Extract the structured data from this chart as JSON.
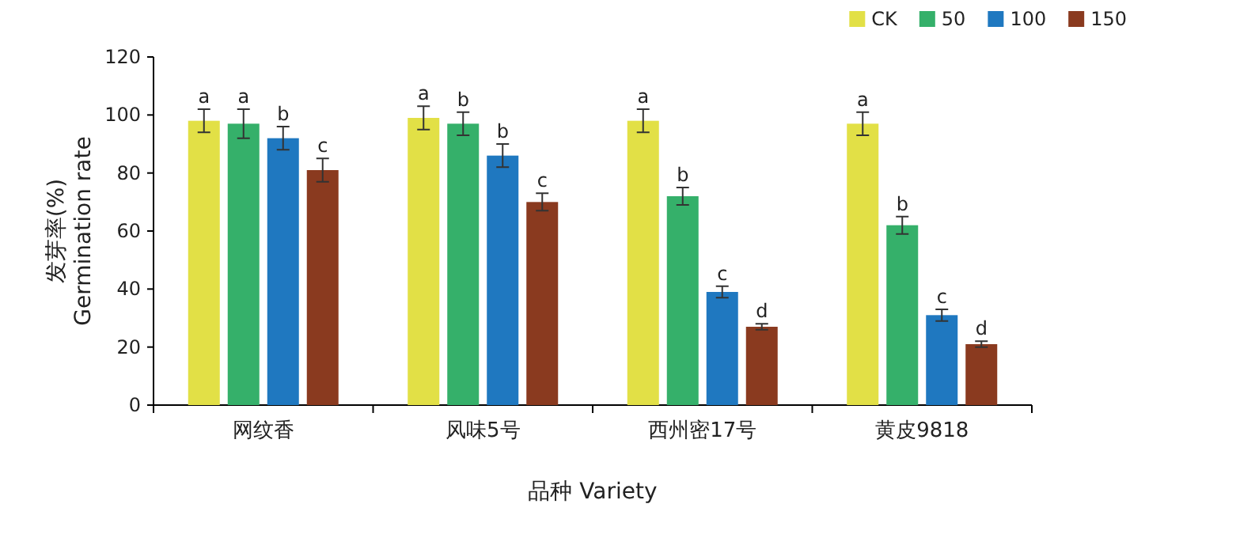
{
  "chart_data": {
    "type": "bar",
    "xlabel": "品种  Variety",
    "ylabel": "发芽率(%)\nGermination rate",
    "categories": [
      "网纹香",
      "风味5号",
      "西州密17号",
      "黄皮9818"
    ],
    "series": [
      {
        "name": "CK",
        "color": "#e2e046",
        "values": [
          98,
          99,
          98,
          97
        ],
        "errors": [
          4,
          4,
          4,
          4
        ],
        "value_labels": [
          "a",
          "a",
          "a",
          "a"
        ]
      },
      {
        "name": "50",
        "color": "#35b06a",
        "values": [
          97,
          97,
          72,
          62
        ],
        "errors": [
          5,
          4,
          3,
          3
        ],
        "value_labels": [
          "a",
          "b",
          "b",
          "b"
        ]
      },
      {
        "name": "100",
        "color": "#1f78c0",
        "values": [
          92,
          86,
          39,
          31
        ],
        "errors": [
          4,
          4,
          2,
          2
        ],
        "value_labels": [
          "b",
          "b",
          "c",
          "c"
        ]
      },
      {
        "name": "150",
        "color": "#8a3a1f",
        "values": [
          81,
          70,
          27,
          21
        ],
        "errors": [
          4,
          3,
          1,
          1
        ],
        "value_labels": [
          "c",
          "c",
          "d",
          "d"
        ]
      }
    ],
    "ylim": [
      0,
      120
    ],
    "yticks": [
      0,
      20,
      40,
      60,
      80,
      100,
      120
    ],
    "legend": "top right",
    "grid": false
  }
}
